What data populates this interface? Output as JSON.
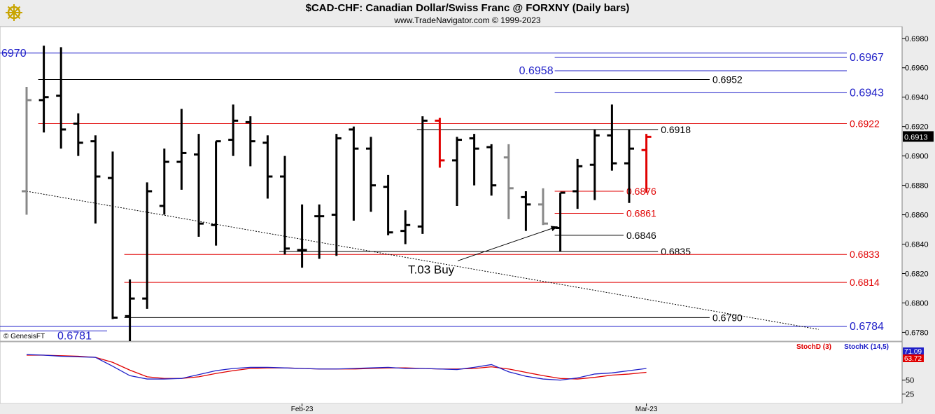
{
  "header": {
    "title": "$CAD-CHF:  Canadian Dollar/Swiss Franc @ FORXNY  (Daily bars)",
    "subtitle": "www.TradeNavigator.com © 1999-2023",
    "logo_icon": "ship-wheel-logo-icon"
  },
  "chart_data": {
    "type": "ohlc",
    "price_axis": {
      "range": [
        0.6774,
        0.6988
      ],
      "ticks": [
        "0.6980",
        "0.6960",
        "0.6940",
        "0.6920",
        "0.6900",
        "0.6880",
        "0.6860",
        "0.6840",
        "0.6820",
        "0.6800",
        "0.6780"
      ],
      "tick_values": [
        0.698,
        0.696,
        0.694,
        0.692,
        0.69,
        0.688,
        0.686,
        0.684,
        0.682,
        0.68,
        0.678
      ],
      "last_price_label": "0.6913",
      "last_price": 0.6913
    },
    "x_axis_labels": [
      {
        "label": "Feb-23",
        "bar_index": 16
      },
      {
        "label": "Mar-23",
        "bar_index": 36
      }
    ],
    "bars": [
      {
        "o": 0.6876,
        "h": 0.6947,
        "l": 0.686,
        "c": 0.6938,
        "color": "gray"
      },
      {
        "o": 0.6938,
        "h": 0.6975,
        "l": 0.6916,
        "c": 0.694,
        "color": "black"
      },
      {
        "o": 0.6941,
        "h": 0.6974,
        "l": 0.6905,
        "c": 0.6918,
        "color": "black"
      },
      {
        "o": 0.6922,
        "h": 0.6929,
        "l": 0.69,
        "c": 0.6909,
        "color": "black"
      },
      {
        "o": 0.691,
        "h": 0.6914,
        "l": 0.6854,
        "c": 0.6886,
        "color": "black"
      },
      {
        "o": 0.6885,
        "h": 0.6903,
        "l": 0.6789,
        "c": 0.679,
        "color": "black"
      },
      {
        "o": 0.6791,
        "h": 0.6816,
        "l": 0.6774,
        "c": 0.6803,
        "color": "black"
      },
      {
        "o": 0.6803,
        "h": 0.6882,
        "l": 0.6796,
        "c": 0.6876,
        "color": "black"
      },
      {
        "o": 0.6866,
        "h": 0.6905,
        "l": 0.686,
        "c": 0.6896,
        "color": "black"
      },
      {
        "o": 0.6896,
        "h": 0.6932,
        "l": 0.6877,
        "c": 0.6902,
        "color": "black"
      },
      {
        "o": 0.6901,
        "h": 0.6915,
        "l": 0.6845,
        "c": 0.6854,
        "color": "black"
      },
      {
        "o": 0.6853,
        "h": 0.691,
        "l": 0.6839,
        "c": 0.691,
        "color": "black"
      },
      {
        "o": 0.6911,
        "h": 0.6935,
        "l": 0.69,
        "c": 0.6924,
        "color": "black"
      },
      {
        "o": 0.6923,
        "h": 0.6927,
        "l": 0.6893,
        "c": 0.691,
        "color": "black"
      },
      {
        "o": 0.6909,
        "h": 0.6914,
        "l": 0.6871,
        "c": 0.6886,
        "color": "black"
      },
      {
        "o": 0.6886,
        "h": 0.69,
        "l": 0.6833,
        "c": 0.6837,
        "color": "black"
      },
      {
        "o": 0.6836,
        "h": 0.6867,
        "l": 0.6824,
        "c": 0.6836,
        "color": "black"
      },
      {
        "o": 0.6859,
        "h": 0.6867,
        "l": 0.683,
        "c": 0.6859,
        "color": "black"
      },
      {
        "o": 0.686,
        "h": 0.6915,
        "l": 0.6832,
        "c": 0.6912,
        "color": "black"
      },
      {
        "o": 0.6918,
        "h": 0.692,
        "l": 0.6856,
        "c": 0.6905,
        "color": "black"
      },
      {
        "o": 0.6905,
        "h": 0.6913,
        "l": 0.6862,
        "c": 0.688,
        "color": "black"
      },
      {
        "o": 0.6879,
        "h": 0.6887,
        "l": 0.6846,
        "c": 0.6848,
        "color": "black"
      },
      {
        "o": 0.6849,
        "h": 0.6863,
        "l": 0.684,
        "c": 0.6853,
        "color": "black"
      },
      {
        "o": 0.6852,
        "h": 0.6927,
        "l": 0.6847,
        "c": 0.6924,
        "color": "black"
      },
      {
        "o": 0.6924,
        "h": 0.6926,
        "l": 0.6892,
        "c": 0.6897,
        "color": "red"
      },
      {
        "o": 0.6897,
        "h": 0.6913,
        "l": 0.6866,
        "c": 0.6911,
        "color": "black"
      },
      {
        "o": 0.6912,
        "h": 0.6915,
        "l": 0.688,
        "c": 0.6905,
        "color": "black"
      },
      {
        "o": 0.6906,
        "h": 0.6908,
        "l": 0.6873,
        "c": 0.688,
        "color": "black"
      },
      {
        "o": 0.6899,
        "h": 0.6908,
        "l": 0.6857,
        "c": 0.6878,
        "color": "gray"
      },
      {
        "o": 0.6872,
        "h": 0.6876,
        "l": 0.6849,
        "c": 0.6867,
        "color": "black"
      },
      {
        "o": 0.6867,
        "h": 0.6878,
        "l": 0.6853,
        "c": 0.6854,
        "color": "gray"
      },
      {
        "o": 0.6851,
        "h": 0.6875,
        "l": 0.6835,
        "c": 0.6875,
        "color": "black"
      },
      {
        "o": 0.6876,
        "h": 0.6898,
        "l": 0.6864,
        "c": 0.6893,
        "color": "black"
      },
      {
        "o": 0.6894,
        "h": 0.6918,
        "l": 0.687,
        "c": 0.6914,
        "color": "black"
      },
      {
        "o": 0.6914,
        "h": 0.6935,
        "l": 0.689,
        "c": 0.6895,
        "color": "black"
      },
      {
        "o": 0.6895,
        "h": 0.6918,
        "l": 0.6868,
        "c": 0.6905,
        "color": "black"
      },
      {
        "o": 0.6904,
        "h": 0.6915,
        "l": 0.6875,
        "c": 0.6913,
        "color": "red"
      }
    ],
    "levels": [
      {
        "label": "6970",
        "value": 0.697,
        "color": "#1f1fc8",
        "start": -1,
        "end": "edge",
        "label_side": "left"
      },
      {
        "label": "0.6967",
        "value": 0.6967,
        "color": "#1f1fc8",
        "start": 31,
        "end": "edge",
        "label_side": "right"
      },
      {
        "label": "0.6958",
        "value": 0.6958,
        "color": "#1f1fc8",
        "start": 31,
        "end": "edge",
        "label_side": "left"
      },
      {
        "label": "0.6952",
        "value": 0.6952,
        "color": "#000000",
        "start": 1,
        "end": 40,
        "label_side": "right"
      },
      {
        "label": "0.6943",
        "value": 0.6943,
        "color": "#1f1fc8",
        "start": 31,
        "end": "edge",
        "label_side": "right"
      },
      {
        "label": "0.6922",
        "value": 0.6922,
        "color": "#e00000",
        "start": 1,
        "end": "edge",
        "label_side": "right"
      },
      {
        "label": "0.6918",
        "value": 0.6918,
        "color": "#000000",
        "start": 23,
        "end": 37,
        "label_side": "right"
      },
      {
        "label": "0.6876",
        "value": 0.6876,
        "color": "#e00000",
        "start": 31,
        "end": 35,
        "label_side": "right"
      },
      {
        "label": "0.6861",
        "value": 0.6861,
        "color": "#e00000",
        "start": 31,
        "end": 35,
        "label_side": "right"
      },
      {
        "label": "0.6846",
        "value": 0.6846,
        "color": "#000000",
        "start": 31,
        "end": 35,
        "label_side": "right"
      },
      {
        "label": "0.6835",
        "value": 0.6835,
        "color": "#000000",
        "start": 15,
        "end": 37,
        "label_side": "right"
      },
      {
        "label": "0.6833",
        "value": 0.6833,
        "color": "#e00000",
        "start": 6,
        "end": "edge",
        "label_side": "right"
      },
      {
        "label": "0.6814",
        "value": 0.6814,
        "color": "#e00000",
        "start": 6,
        "end": "edge",
        "label_side": "right"
      },
      {
        "label": "0.6790",
        "value": 0.679,
        "color": "#000000",
        "start": 6,
        "end": 40,
        "label_side": "right"
      },
      {
        "label": "0.6784",
        "value": 0.6784,
        "color": "#1f1fc8",
        "start": -1,
        "end": "edge",
        "label_side": "right"
      },
      {
        "label": "0.6781",
        "value": 0.6781,
        "color": "#1f1fc8",
        "start": -1,
        "end": 5,
        "label_side": "mid"
      }
    ],
    "trendline": {
      "from": {
        "bar": 0,
        "value": 0.6876
      },
      "to": {
        "bar": 46,
        "value": 0.6782
      },
      "style": "dotted"
    },
    "annotations": [
      {
        "text": "T.03 Buy",
        "bar": 23.5,
        "value": 0.6822,
        "arrow_to": {
          "bar": 31,
          "value": 0.6852
        }
      }
    ],
    "watermark": "© GenesisFT",
    "indicator": {
      "name": "Stochastic",
      "legend": [
        {
          "label": "StochD (3)",
          "color": "#e00000"
        },
        {
          "label": "StochK (14,5)",
          "color": "#1f1fc8"
        }
      ],
      "range": [
        18,
        100
      ],
      "ticks": [
        {
          "label": "50",
          "value": 50
        },
        {
          "label": "25",
          "value": 25
        }
      ],
      "last_values": [
        {
          "label": "71.09",
          "value": 71.09,
          "color": "#1f1fc8"
        },
        {
          "label": "63.72",
          "value": 63.72,
          "color": "#e00000"
        }
      ],
      "stoch_k": [
        96,
        95,
        93,
        92,
        91,
        75,
        58,
        52,
        52,
        53,
        60,
        67,
        71,
        73,
        73,
        72,
        71,
        70,
        70,
        71,
        72,
        73,
        71,
        71,
        70,
        69,
        73,
        78,
        65,
        57,
        52,
        50,
        54,
        61,
        63,
        67,
        71
      ],
      "stoch_d": [
        95,
        95,
        94,
        93,
        91,
        82,
        68,
        56,
        53,
        53,
        56,
        62,
        67,
        71,
        72,
        72,
        71,
        70,
        70,
        70,
        71,
        72,
        72,
        71,
        70,
        70,
        71,
        74,
        70,
        64,
        58,
        53,
        52,
        55,
        59,
        61,
        64
      ]
    }
  }
}
